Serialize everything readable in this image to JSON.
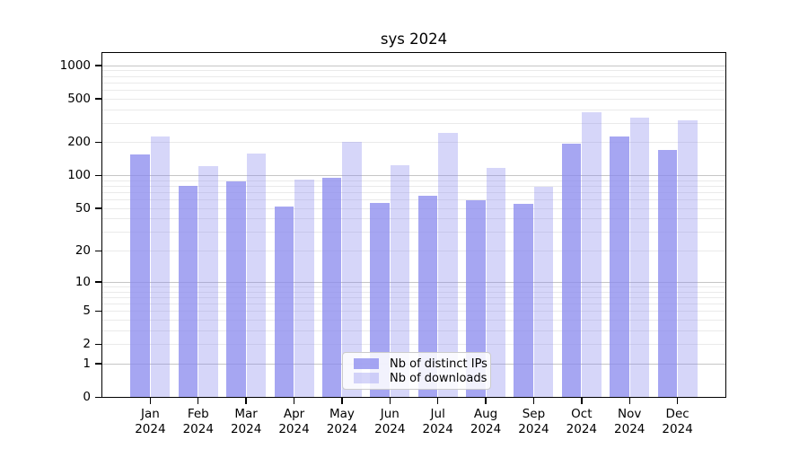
{
  "chart_data": {
    "type": "bar",
    "title": "sys 2024",
    "x_months": [
      "Jan",
      "Feb",
      "Mar",
      "Apr",
      "May",
      "Jun",
      "Jul",
      "Aug",
      "Sep",
      "Oct",
      "Nov",
      "Dec"
    ],
    "x_year": "2024",
    "categories": [
      "Jan 2024",
      "Feb 2024",
      "Mar 2024",
      "Apr 2024",
      "May 2024",
      "Jun 2024",
      "Jul 2024",
      "Aug 2024",
      "Sep 2024",
      "Oct 2024",
      "Nov 2024",
      "Dec 2024"
    ],
    "series": [
      {
        "name": "Nb of distinct IPs",
        "color": "rgba(136,136,238,0.75)",
        "values": [
          155,
          80,
          88,
          52,
          95,
          56,
          65,
          59,
          55,
          193,
          228,
          169
        ]
      },
      {
        "name": "Nb of downloads",
        "color": "rgba(136,136,238,0.34)",
        "values": [
          228,
          121,
          157,
          92,
          201,
          123,
          245,
          118,
          78,
          375,
          335,
          315
        ]
      }
    ],
    "y_scale": "log1p",
    "y_ticks": [
      0,
      1,
      2,
      5,
      10,
      20,
      50,
      100,
      200,
      500,
      1000
    ],
    "ylim": [
      0,
      1290
    ],
    "grid": true,
    "legend_position": "lower center",
    "colors": {
      "bar_base": "#8888ee",
      "grid_major": "#c6c6c6",
      "grid_minor": "#eaeaea",
      "axis": "#000000"
    }
  }
}
